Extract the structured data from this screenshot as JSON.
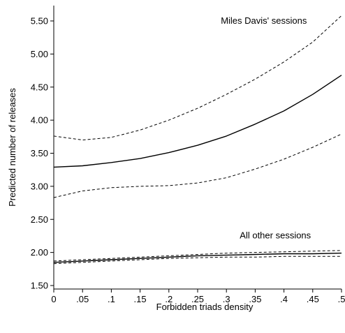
{
  "chart_data": {
    "type": "line",
    "title": "",
    "xlabel": "Forbidden triads density",
    "ylabel": "Predicted number of releases",
    "xlim": [
      0,
      0.5
    ],
    "ylim": [
      1.5,
      5.5
    ],
    "x_ticks": [
      0,
      0.05,
      0.1,
      0.15,
      0.2,
      0.25,
      0.3,
      0.35,
      0.4,
      0.45,
      0.5
    ],
    "x_tick_labels": [
      "0",
      ".05",
      ".1",
      ".15",
      ".2",
      ".25",
      ".3",
      ".35",
      ".4",
      ".45",
      ".5"
    ],
    "y_ticks": [
      1.5,
      2.0,
      2.5,
      3.0,
      3.5,
      4.0,
      4.5,
      5.0,
      5.5
    ],
    "y_tick_labels": [
      "1.50",
      "2.00",
      "2.50",
      "3.00",
      "3.50",
      "4.00",
      "4.50",
      "5.00",
      "5.50"
    ],
    "grid": false,
    "x": [
      0,
      0.05,
      0.1,
      0.15,
      0.2,
      0.25,
      0.3,
      0.35,
      0.4,
      0.45,
      0.5
    ],
    "series": [
      {
        "values": [
          3.29,
          3.31,
          3.36,
          3.42,
          3.51,
          3.62,
          3.76,
          3.94,
          4.14,
          4.39,
          4.68
        ],
        "style": "solid",
        "group": "miles"
      },
      {
        "values": [
          3.76,
          3.7,
          3.74,
          3.85,
          4.0,
          4.18,
          4.39,
          4.62,
          4.88,
          5.18,
          5.58
        ],
        "style": "dashed",
        "group": "miles"
      },
      {
        "values": [
          2.83,
          2.93,
          2.98,
          3.0,
          3.01,
          3.05,
          3.13,
          3.26,
          3.41,
          3.59,
          3.79
        ],
        "style": "dashed",
        "group": "miles"
      },
      {
        "values": [
          1.85,
          1.87,
          1.89,
          1.91,
          1.93,
          1.95,
          1.96,
          1.97,
          1.98,
          1.98,
          1.99
        ],
        "style": "solid",
        "group": "others"
      },
      {
        "values": [
          1.87,
          1.89,
          1.91,
          1.93,
          1.95,
          1.97,
          1.99,
          2.0,
          2.01,
          2.02,
          2.03
        ],
        "style": "dashed",
        "group": "others"
      },
      {
        "values": [
          1.83,
          1.85,
          1.87,
          1.89,
          1.91,
          1.92,
          1.93,
          1.93,
          1.94,
          1.94,
          1.94
        ],
        "style": "dashed",
        "group": "others"
      }
    ],
    "annotations": [
      {
        "text": "Miles Davis' sessions",
        "x": 0.365,
        "y": 5.46
      },
      {
        "text": "All other sessions",
        "x": 0.385,
        "y": 2.21
      }
    ]
  }
}
